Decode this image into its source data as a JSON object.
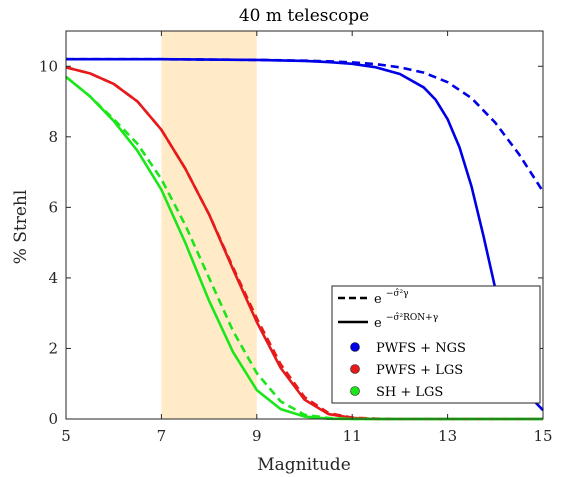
{
  "chart_data": {
    "type": "line",
    "title": "40 m telescope",
    "xlabel": "Magnitude",
    "ylabel": "% Strehl",
    "xlim": [
      5,
      15
    ],
    "ylim": [
      0,
      11
    ],
    "xticks": [
      "5",
      "7",
      "9",
      "11",
      "13",
      "15"
    ],
    "yticks": [
      "0",
      "2",
      "4",
      "6",
      "8",
      "10"
    ],
    "shaded_region": {
      "x_start": 7,
      "x_end": 9,
      "color": "#FFEBC8"
    },
    "grid": false,
    "legend": {
      "placement": "bottom-right",
      "style_entries": [
        {
          "line_style": "dashed",
          "label_base": "e",
          "label_exponent": "−σ̂²γ"
        },
        {
          "line_style": "solid",
          "label_base": "e",
          "label_exponent": "−σ̂²RON+γ"
        }
      ],
      "color_entries": [
        {
          "label": "PWFS + NGS",
          "color": "#0000E6"
        },
        {
          "label": "PWFS + LGS",
          "color": "#E61A1A"
        },
        {
          "label": "SH + LGS",
          "color": "#1AE61A"
        }
      ]
    },
    "series": [
      {
        "name": "PWFS + NGS",
        "style": "dashed",
        "color": "#0000E6",
        "x": [
          5,
          6,
          7,
          8,
          9,
          10,
          10.5,
          11,
          11.5,
          12,
          12.5,
          13,
          13.5,
          14,
          14.5,
          15
        ],
        "y": [
          10.2,
          10.2,
          10.2,
          10.19,
          10.18,
          10.16,
          10.14,
          10.11,
          10.06,
          9.97,
          9.82,
          9.55,
          9.1,
          8.4,
          7.5,
          6.45
        ]
      },
      {
        "name": "PWFS + NGS",
        "style": "solid",
        "color": "#0000E6",
        "x": [
          5,
          6,
          7,
          8,
          9,
          10,
          10.5,
          11,
          11.5,
          12,
          12.5,
          12.75,
          13,
          13.25,
          13.5,
          13.75,
          14,
          14.25,
          14.5,
          14.75,
          15
        ],
        "y": [
          10.2,
          10.2,
          10.2,
          10.19,
          10.18,
          10.15,
          10.12,
          10.07,
          9.97,
          9.78,
          9.4,
          9.05,
          8.5,
          7.7,
          6.6,
          5.2,
          3.7,
          2.3,
          1.25,
          0.6,
          0.25
        ]
      },
      {
        "name": "PWFS + LGS",
        "style": "dashed",
        "color": "#E61A1A",
        "x": [
          5,
          5.5,
          6,
          6.5,
          7,
          7.5,
          8,
          8.5,
          9,
          9.5,
          10,
          10.5,
          11,
          11.5,
          12,
          15
        ],
        "y": [
          9.97,
          9.8,
          9.5,
          9.0,
          8.2,
          7.1,
          5.8,
          4.3,
          2.85,
          1.55,
          0.62,
          0.17,
          0.04,
          0.01,
          0.0,
          0.0
        ]
      },
      {
        "name": "PWFS + LGS",
        "style": "solid",
        "color": "#E61A1A",
        "x": [
          5,
          5.5,
          6,
          6.5,
          7,
          7.5,
          8,
          8.5,
          9,
          9.5,
          10,
          10.5,
          11,
          11.5,
          12,
          15
        ],
        "y": [
          9.97,
          9.8,
          9.5,
          9.0,
          8.2,
          7.1,
          5.8,
          4.25,
          2.75,
          1.45,
          0.55,
          0.14,
          0.03,
          0.0,
          0.0,
          0.0
        ]
      },
      {
        "name": "SH + LGS",
        "style": "dashed",
        "color": "#1AE61A",
        "x": [
          5,
          5.5,
          6,
          6.5,
          7,
          7.5,
          8,
          8.5,
          9,
          9.5,
          10,
          10.5,
          11,
          15
        ],
        "y": [
          9.7,
          9.15,
          8.5,
          7.8,
          6.8,
          5.5,
          4.0,
          2.5,
          1.3,
          0.5,
          0.12,
          0.03,
          0.0,
          0.0
        ]
      },
      {
        "name": "SH + LGS",
        "style": "solid",
        "color": "#1AE61A",
        "x": [
          5,
          5.5,
          6,
          6.5,
          7,
          7.5,
          8,
          8.5,
          9,
          9.5,
          10,
          10.5,
          11,
          15
        ],
        "y": [
          9.7,
          9.15,
          8.45,
          7.6,
          6.5,
          5.0,
          3.35,
          1.9,
          0.82,
          0.28,
          0.07,
          0.01,
          0.0,
          0.0
        ]
      }
    ]
  }
}
